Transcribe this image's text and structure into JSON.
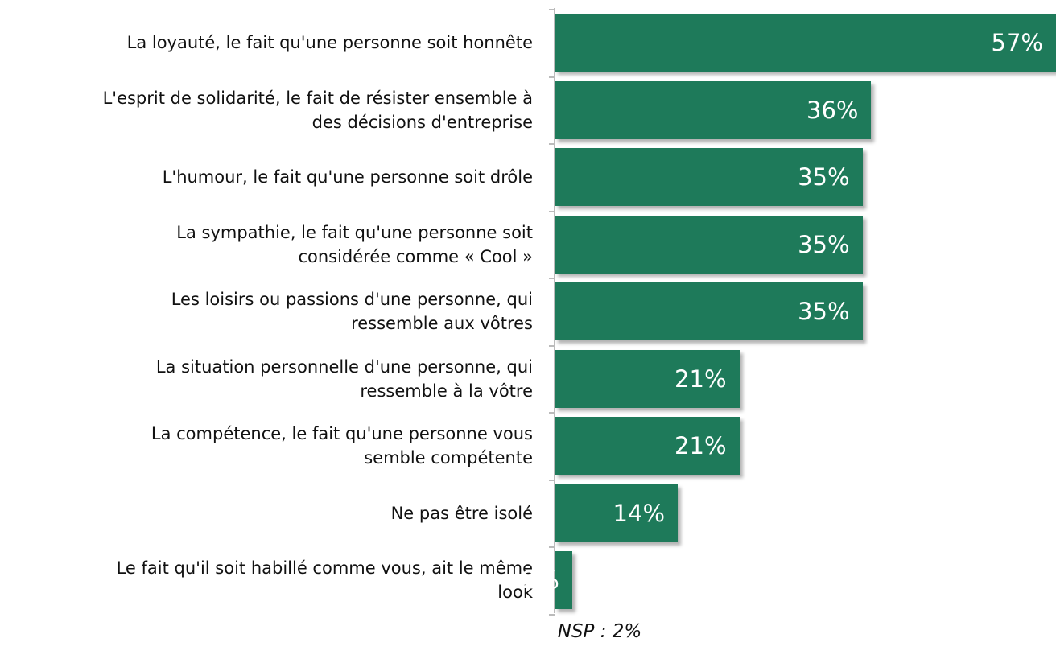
{
  "chart_data": {
    "type": "bar",
    "orientation": "horizontal",
    "categories": [
      "La loyauté, le fait qu'une personne soit honnête",
      "L'esprit de solidarité, le fait de résister ensemble à\ndes décisions d'entreprise",
      "L'humour, le fait qu'une personne soit drôle",
      "La sympathie, le fait qu'une personne soit\nconsidérée comme « Cool »",
      "Les loisirs ou passions d'une personne, qui\nressemble aux vôtres",
      "La situation personnelle d'une personne, qui\nressemble à la vôtre",
      "La compétence, le fait qu'une personne vous\nsemble compétente",
      "Ne pas être isolé",
      "Le fait qu'il soit habillé comme vous, ait le même\nlook"
    ],
    "values": [
      57,
      36,
      35,
      35,
      35,
      21,
      21,
      14,
      2
    ],
    "value_labels": [
      "57%",
      "36%",
      "35%",
      "35%",
      "35%",
      "21%",
      "21%",
      "14%",
      "2%"
    ],
    "color": "#1e7a5a",
    "annotation": "NSP : 2%"
  }
}
